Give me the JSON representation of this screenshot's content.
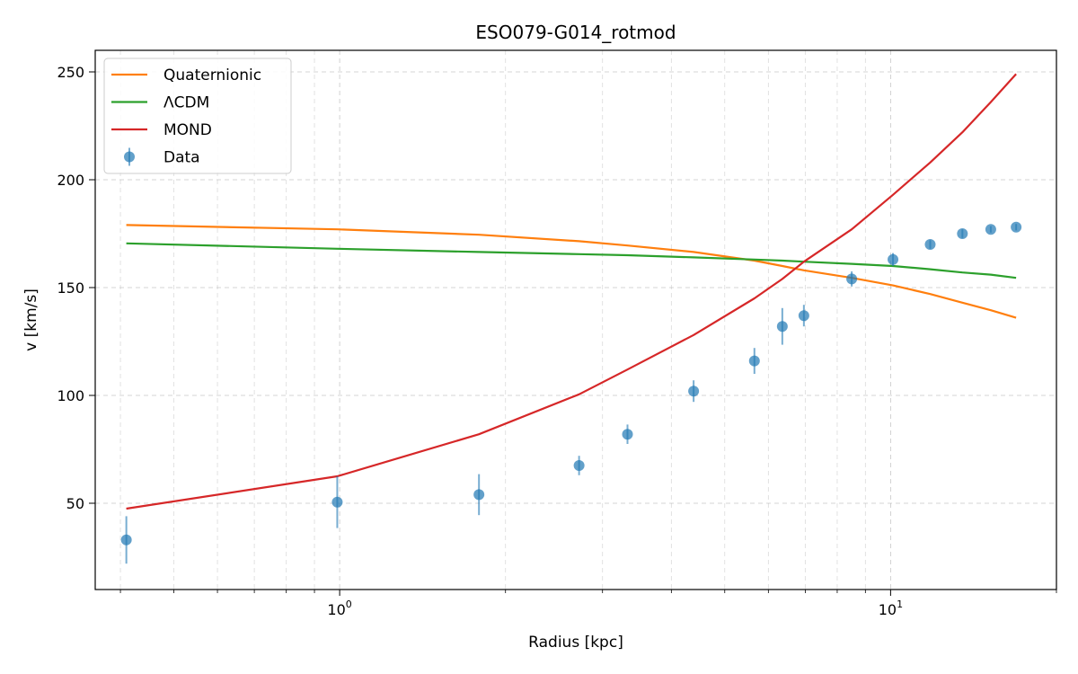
{
  "chart_data": {
    "type": "line",
    "title": "ESO079-G014_rotmod",
    "xlabel": "Radius [kpc]",
    "ylabel": "v [km/s]",
    "xscale": "log",
    "xlim": [
      0.36,
      20
    ],
    "ylim": [
      10,
      260
    ],
    "grid": true,
    "legend_position": "top-left",
    "x_ticks": [
      {
        "value": 1,
        "base": "10",
        "exp": "0"
      },
      {
        "value": 10,
        "base": "10",
        "exp": "1"
      }
    ],
    "y_ticks": [
      50,
      100,
      150,
      200,
      250
    ],
    "series": [
      {
        "name": "Quaternionic",
        "kind": "line",
        "color": "#ff7f0e",
        "x": [
          0.41,
          0.99,
          1.79,
          2.72,
          3.33,
          4.39,
          5.66,
          6.36,
          6.96,
          8.5,
          10.1,
          11.8,
          13.5,
          15.2,
          16.9
        ],
        "y": [
          179,
          177,
          174.5,
          171.5,
          169.5,
          166.5,
          162.5,
          160,
          158,
          154.5,
          151,
          147,
          143,
          139.5,
          136
        ]
      },
      {
        "name": "ΛCDM",
        "kind": "line",
        "color": "#2ca02c",
        "x": [
          0.41,
          0.99,
          1.79,
          2.72,
          3.33,
          4.39,
          5.66,
          6.36,
          6.96,
          8.5,
          10.1,
          11.8,
          13.5,
          15.2,
          16.9
        ],
        "y": [
          170.5,
          168,
          166.5,
          165.5,
          165,
          164,
          163,
          162.5,
          162,
          161,
          160,
          158.5,
          157,
          156,
          154.5
        ]
      },
      {
        "name": "MOND",
        "kind": "line",
        "color": "#d62728",
        "x": [
          0.41,
          0.99,
          1.79,
          2.72,
          3.33,
          4.39,
          5.66,
          6.36,
          6.96,
          8.5,
          10.1,
          11.8,
          13.5,
          15.2,
          16.9
        ],
        "y": [
          47.5,
          62.5,
          82,
          100.5,
          112,
          128,
          145,
          154,
          162,
          177,
          193,
          208,
          222,
          236,
          249
        ]
      },
      {
        "name": "Data",
        "kind": "errorbar",
        "color": "#1f77b4",
        "x": [
          0.41,
          0.99,
          1.79,
          2.72,
          3.33,
          4.39,
          5.66,
          6.36,
          6.96,
          8.5,
          10.1,
          11.8,
          13.5,
          15.2,
          16.9
        ],
        "y": [
          33,
          50.5,
          54,
          67.5,
          82,
          102,
          116,
          132,
          137,
          154,
          163,
          170,
          175,
          177,
          178
        ],
        "err": [
          11,
          12,
          9.5,
          4.5,
          4.5,
          5,
          6,
          8.5,
          5,
          3.5,
          3,
          2,
          2,
          1.5,
          1.5
        ]
      }
    ]
  }
}
